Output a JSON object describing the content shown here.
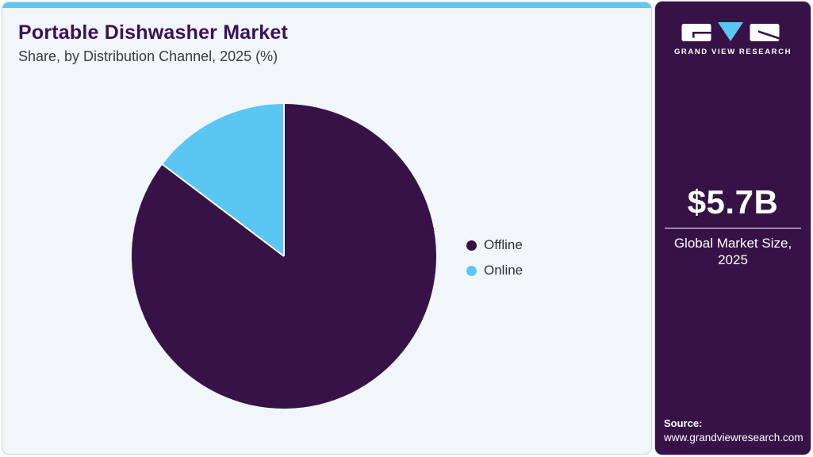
{
  "header": {
    "title": "Portable Dishwasher Market",
    "subtitle": "Share, by Distribution Channel, 2025 (%)"
  },
  "chart_data": {
    "type": "pie",
    "title": "Portable Dishwasher Market Share, by Distribution Channel, 2025 (%)",
    "categories": [
      "Offline",
      "Online"
    ],
    "values": [
      85.3,
      14.7
    ],
    "unit": "percent",
    "start_angle_deg": -90,
    "direction": "clockwise",
    "data_labels": "none",
    "legend_position": "right",
    "colors": [
      "#371247",
      "#5bc6f2"
    ]
  },
  "legend": {
    "items": [
      {
        "label": "Offline",
        "color": "#371247"
      },
      {
        "label": "Online",
        "color": "#5bc6f2"
      }
    ]
  },
  "sidebar": {
    "brand": "GRAND VIEW RESEARCH",
    "market_size_value": "$5.7B",
    "market_size_label_line1": "Global Market Size,",
    "market_size_label_line2": "2025",
    "source_label": "Source:",
    "source_url": "www.grandviewresearch.com"
  },
  "colors": {
    "brand_purple": "#371247",
    "accent_blue": "#5bc6f2",
    "topbar_blue": "#5ec8ef",
    "title_purple": "#3c1056",
    "card_bg": "#f0f6fa",
    "separator_white": "#ffffff"
  }
}
